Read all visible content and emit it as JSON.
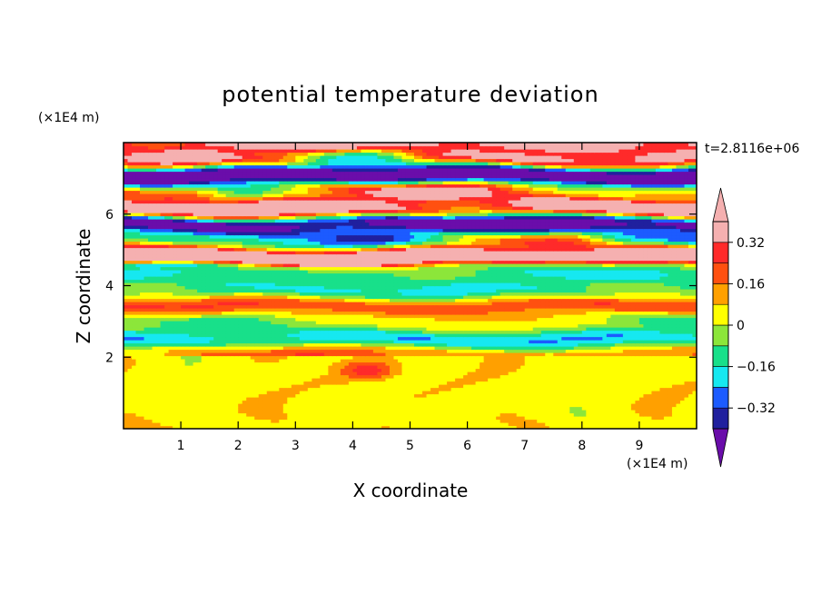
{
  "chart_data": {
    "type": "heatmap",
    "title": "potential temperature deviation",
    "xlabel": "X coordinate",
    "ylabel": "Z coordinate",
    "x_unit": "(×1E4 m)",
    "y_unit": "(×1E4 m)",
    "time_label": "t=2.8116e+06",
    "xlim": [
      0,
      10
    ],
    "ylim": [
      0,
      8
    ],
    "x_ticks": [
      1,
      2,
      3,
      4,
      5,
      6,
      7,
      8,
      9
    ],
    "y_ticks": [
      2,
      4,
      6
    ],
    "colorbar": {
      "levels": [
        -0.4,
        -0.32,
        -0.24,
        -0.16,
        -0.08,
        0,
        0.08,
        0.16,
        0.24,
        0.32,
        0.4
      ],
      "tick_values": [
        -0.32,
        -0.16,
        0,
        0.16,
        0.32
      ],
      "tick_labels": [
        "−0.32",
        "−0.16",
        "0",
        "0.16",
        "0.32"
      ],
      "colors": [
        "#6a0daa",
        "#20209e",
        "#1c5bff",
        "#16e8f0",
        "#18e08a",
        "#8ce63a",
        "#ffff00",
        "#ffa000",
        "#ff5010",
        "#ff2a2a",
        "#f5b0b0"
      ],
      "extend": "both"
    },
    "field_description": {
      "lower_layer": {
        "z_range": [
          0,
          2
        ],
        "dominant_values": [
          0,
          0.08
        ]
      },
      "middle_layer": {
        "z_range": [
          2,
          4.5
        ],
        "dominant_values": [
          -0.16,
          0.16
        ]
      },
      "upper_layer": {
        "z_range": [
          4.5,
          8
        ],
        "dominant_values": [
          -0.4,
          0.4
        ]
      }
    }
  }
}
